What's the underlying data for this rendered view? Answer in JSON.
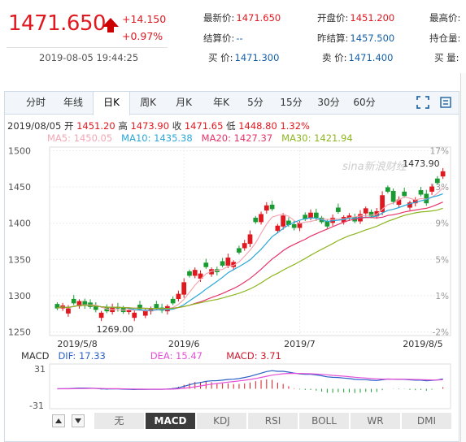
{
  "quote": {
    "price": "1471.650",
    "change": "+14.150",
    "change_pct": "+0.97%",
    "timestamp": "2019-08-05 19:44:25",
    "fields": [
      {
        "label": "最新价:",
        "value": "1471.650",
        "color": "red"
      },
      {
        "label": "开盘价:",
        "value": "1451.200",
        "color": "red"
      },
      {
        "label": "最高价:",
        "value": "",
        "color": "red"
      },
      {
        "label": "结算价:",
        "value": "--",
        "color": "blue"
      },
      {
        "label": "昨结算:",
        "value": "1457.500",
        "color": "blue"
      },
      {
        "label": "持仓量:",
        "value": "",
        "color": "dark"
      },
      {
        "label": "买  价:",
        "value": "1471.300",
        "color": "blue"
      },
      {
        "label": "卖  价:",
        "value": "1471.400",
        "color": "blue"
      },
      {
        "label": "买  量:",
        "value": "",
        "color": "dark"
      }
    ]
  },
  "tabs": [
    {
      "label": "分时",
      "active": false
    },
    {
      "label": "年线",
      "active": false
    },
    {
      "label": "日K",
      "active": true
    },
    {
      "label": "周K",
      "active": false
    },
    {
      "label": "月K",
      "active": false
    },
    {
      "label": "年K",
      "active": false
    },
    {
      "label": "5分",
      "active": false
    },
    {
      "label": "15分",
      "active": false
    },
    {
      "label": "30分",
      "active": false
    },
    {
      "label": "60分",
      "active": false
    }
  ],
  "tools": [
    {
      "name": "fullscreen-icon"
    },
    {
      "name": "settings-icon"
    }
  ],
  "ohlc": {
    "date": "2019/08/05",
    "open_label": "开",
    "open": "1451.20",
    "high_label": "高",
    "high": "1473.90",
    "close_label": "收",
    "close": "1471.65",
    "low_label": "低",
    "low": "1448.80",
    "pct": "1.32%"
  },
  "ma": [
    {
      "label": "MA5: 1450.05",
      "color": "#f4a6b4"
    },
    {
      "label": "MA10: 1435.38",
      "color": "#2aa6d8"
    },
    {
      "label": "MA20: 1427.37",
      "color": "#e8336a"
    },
    {
      "label": "MA30: 1421.94",
      "color": "#8db51e"
    }
  ],
  "chart_data": {
    "type": "candlestick",
    "y_ticks": [
      "1500",
      "1450",
      "1400",
      "1350",
      "1300",
      "1250"
    ],
    "ylim": [
      1245,
      1505
    ],
    "pct_ticks": [
      "17%",
      "13%",
      "9%",
      "5%",
      "1%",
      "-2%"
    ],
    "x_ticks": [
      "2019/5/8",
      "2019/6",
      "2019/7",
      "2019/8/5"
    ],
    "max_label": "1473.90",
    "min_label": "1269.00",
    "watermark": "sina新浪财经",
    "closes": [
      1283,
      1286,
      1282,
      1290,
      1292,
      1287,
      1285,
      1281,
      1276,
      1279,
      1284,
      1283,
      1278,
      1280,
      1276,
      1282,
      1279,
      1281,
      1283,
      1280,
      1285,
      1290,
      1302,
      1318,
      1328,
      1335,
      1330,
      1340,
      1336,
      1333,
      1342,
      1352,
      1346,
      1360,
      1372,
      1384,
      1402,
      1412,
      1424,
      1420,
      1396,
      1410,
      1398,
      1394,
      1400,
      1406,
      1414,
      1408,
      1402,
      1396,
      1407,
      1416,
      1408,
      1410,
      1403,
      1412,
      1420,
      1410,
      1416,
      1438,
      1444,
      1430,
      1432,
      1438,
      1428,
      1432,
      1440,
      1428,
      1450,
      1456,
      1471
    ],
    "candle_up_color": "#e0181f",
    "candle_down_color": "#1a9b32"
  },
  "macd": {
    "label": "MACD",
    "dif": "DIF: 17.33",
    "dea": "DEA: 15.47",
    "macd": "MACD: 3.71",
    "dif_color": "#2b5fc7",
    "dea_color": "#e54fd8",
    "macd_color": "#d4162b",
    "y_top": "31",
    "y_bottom": "-31"
  },
  "indicator_tabs": [
    {
      "label": "无",
      "active": false
    },
    {
      "label": "MACD",
      "active": true
    },
    {
      "label": "KDJ",
      "active": false
    },
    {
      "label": "RSI",
      "active": false
    },
    {
      "label": "BOLL",
      "active": false
    },
    {
      "label": "WR",
      "active": false
    },
    {
      "label": "DMI",
      "active": false
    }
  ]
}
